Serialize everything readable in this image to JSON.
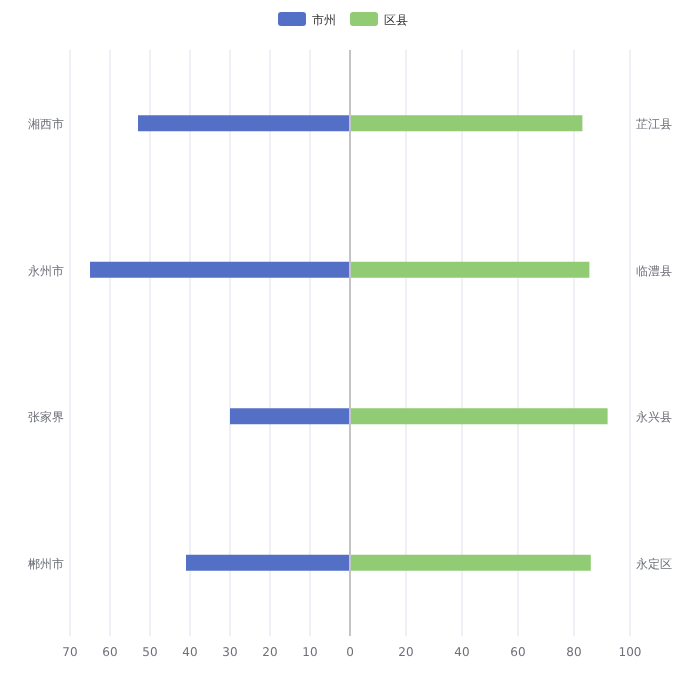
{
  "chart_data": [
    {
      "type": "bar",
      "orientation": "horizontal",
      "categories": [
        "湘西市",
        "永州市",
        "张家界",
        "郴州市"
      ],
      "series": [
        {
          "name": "市州",
          "color": "#5470c6",
          "values": [
            53,
            65,
            30,
            41
          ]
        }
      ],
      "xlim": [
        70,
        0
      ],
      "xticks": [
        70,
        60,
        50,
        40,
        30,
        20,
        10,
        0
      ],
      "grid": "x",
      "legend": "top"
    },
    {
      "type": "bar",
      "orientation": "horizontal",
      "categories": [
        "芷江县",
        "临澧县",
        "永兴县",
        "永定区"
      ],
      "series": [
        {
          "name": "区县",
          "color": "#91cc75",
          "values": [
            83,
            85.5,
            92,
            86
          ]
        }
      ],
      "xlim": [
        0,
        100
      ],
      "xticks": [
        {
          "value": 0,
          "label": null
        },
        20,
        40,
        60,
        80,
        100
      ],
      "grid": "x",
      "legend": "top"
    }
  ]
}
